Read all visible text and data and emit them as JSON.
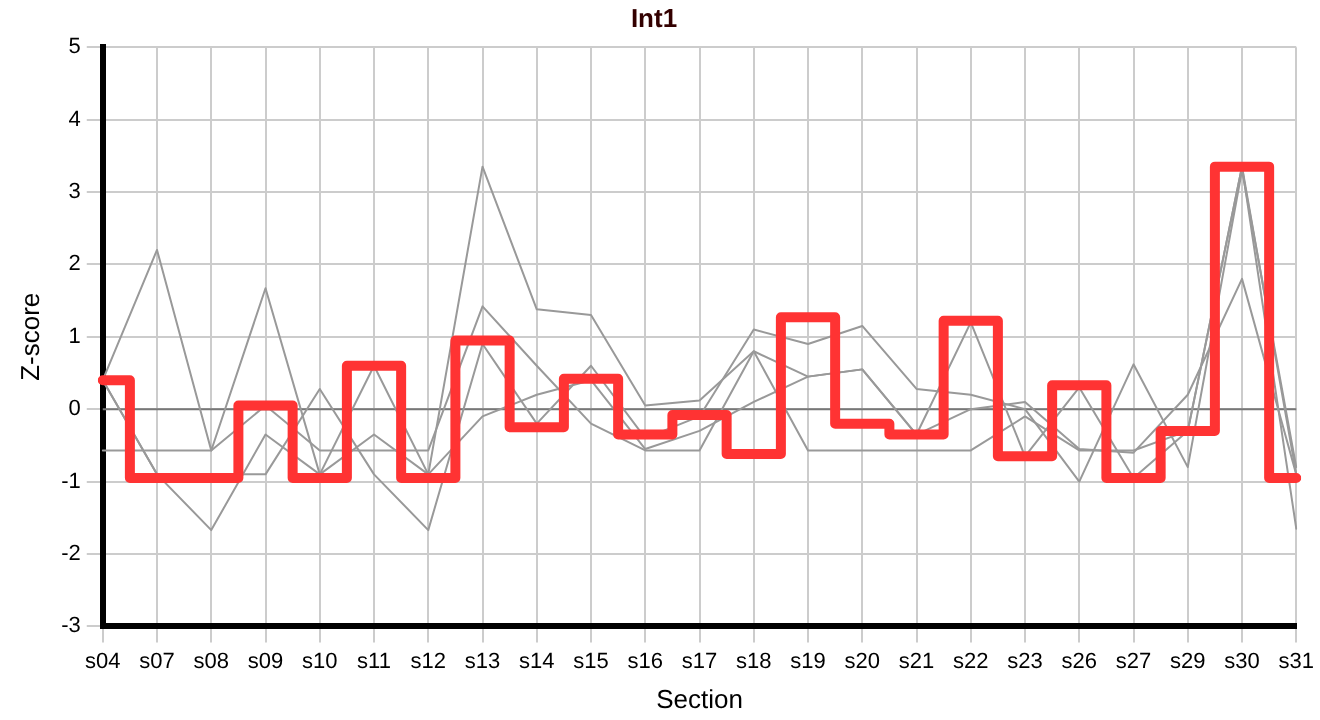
{
  "chart_data": {
    "type": "line",
    "title": "Int1",
    "xlabel": "Section",
    "ylabel": "Z-score",
    "categories": [
      "s04",
      "s07",
      "s08",
      "s09",
      "s10",
      "s11",
      "s12",
      "s13",
      "s14",
      "s15",
      "s16",
      "s17",
      "s18",
      "s19",
      "s20",
      "s21",
      "s22",
      "s23",
      "s26",
      "s27",
      "s29",
      "s30",
      "s31"
    ],
    "series": [
      {
        "color": "#999999",
        "values": [
          0.4,
          2.2,
          -0.57,
          1.67,
          -0.9,
          0.6,
          -0.9,
          3.35,
          1.38,
          1.3,
          0.05,
          0.12,
          0.8,
          0.45,
          0.55,
          -0.35,
          1.2,
          -0.65,
          0.3,
          -0.95,
          -0.3,
          3.35,
          -0.9
        ]
      },
      {
        "color": "#999999",
        "values": [
          -0.57,
          -0.57,
          -0.57,
          0.05,
          -0.57,
          -0.57,
          -0.57,
          1.42,
          0.6,
          -0.2,
          -0.57,
          -0.57,
          0.8,
          -0.57,
          -0.57,
          -0.57,
          -0.57,
          -0.1,
          -0.57,
          -0.57,
          -0.3,
          3.35,
          -1.65
        ]
      },
      {
        "color": "#999999",
        "values": [
          0.4,
          -0.9,
          -0.9,
          -0.9,
          0.28,
          -0.9,
          -1.67,
          0.9,
          -0.2,
          0.6,
          -0.4,
          -0.1,
          1.1,
          0.9,
          1.15,
          0.28,
          0.2,
          0.0,
          -1.0,
          0.62,
          -0.8,
          3.3,
          -0.8
        ]
      },
      {
        "color": "#999999",
        "values": [
          0.4,
          -0.9,
          -1.67,
          -0.35,
          -0.9,
          -0.35,
          -0.9,
          -0.1,
          0.2,
          0.4,
          -0.55,
          -0.3,
          0.1,
          0.45,
          0.55,
          -0.35,
          0.0,
          0.1,
          -0.55,
          -0.6,
          0.2,
          1.8,
          -0.9
        ]
      },
      {
        "type": "step",
        "color": "#ff3333",
        "values": [
          0.4,
          -0.95,
          -0.95,
          0.05,
          -0.95,
          0.6,
          -0.95,
          0.95,
          -0.25,
          0.42,
          -0.35,
          -0.08,
          -0.62,
          1.27,
          -0.2,
          -0.35,
          1.22,
          -0.65,
          0.33,
          -0.95,
          -0.3,
          3.35,
          -0.95
        ]
      }
    ],
    "ylim": [
      -3,
      5
    ],
    "yticks": [
      -3,
      -2,
      -1,
      0,
      1,
      2,
      3,
      4,
      5
    ],
    "grid": true,
    "legend": false,
    "ref_lines": [
      {
        "axis": "y",
        "value": 0,
        "color": "#777777"
      }
    ]
  }
}
